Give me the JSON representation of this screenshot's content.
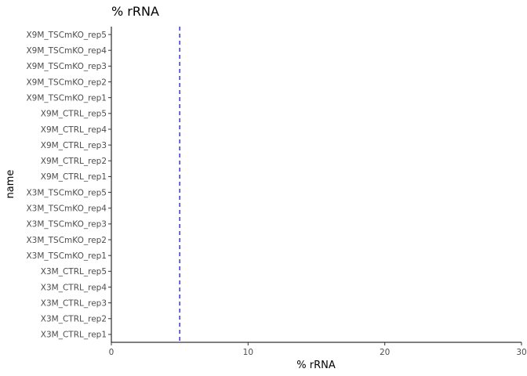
{
  "chart_data": {
    "type": "bar",
    "title": "% rRNA",
    "xlabel": "% rRNA",
    "ylabel": "name",
    "orientation": "horizontal",
    "xlim": [
      0,
      30
    ],
    "x_ticks": [
      0,
      10,
      20,
      30
    ],
    "categories": [
      "X3M_CTRL_rep1",
      "X3M_CTRL_rep2",
      "X3M_CTRL_rep3",
      "X3M_CTRL_rep4",
      "X3M_CTRL_rep5",
      "X3M_TSCmKO_rep1",
      "X3M_TSCmKO_rep2",
      "X3M_TSCmKO_rep3",
      "X3M_TSCmKO_rep4",
      "X3M_TSCmKO_rep5",
      "X9M_CTRL_rep1",
      "X9M_CTRL_rep2",
      "X9M_CTRL_rep3",
      "X9M_CTRL_rep4",
      "X9M_CTRL_rep5",
      "X9M_TSCmKO_rep1",
      "X9M_TSCmKO_rep2",
      "X9M_TSCmKO_rep3",
      "X9M_TSCmKO_rep4",
      "X9M_TSCmKO_rep5"
    ],
    "values": [
      0,
      0,
      0,
      0,
      0,
      0,
      0,
      0,
      0,
      0,
      0,
      0,
      0,
      0,
      0,
      0,
      0,
      0,
      0,
      0
    ],
    "reference_line": {
      "x": 5,
      "color": "#3333ee",
      "style": "dashed"
    },
    "grid": false,
    "legend": "none"
  }
}
